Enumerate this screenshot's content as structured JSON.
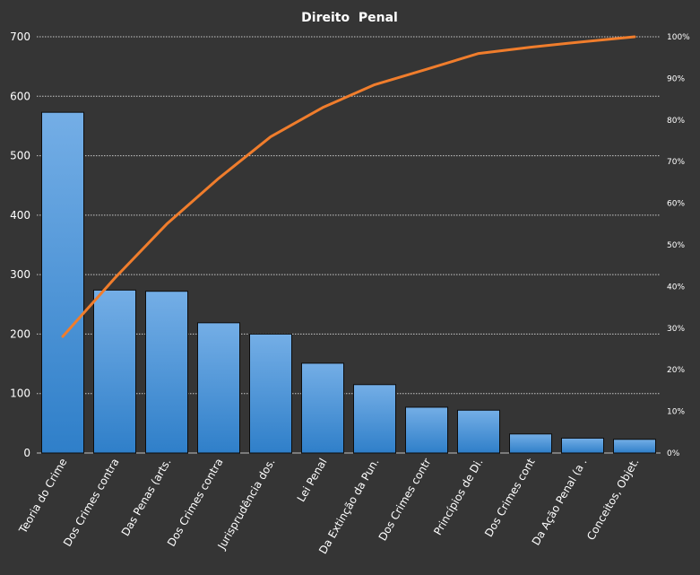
{
  "chart_data": {
    "type": "bar",
    "title": "Direito  Penal",
    "categories": [
      "Teoria do Crime",
      "Dos Crimes contra",
      "Das Penas (arts.",
      "Dos Crimes contra",
      "Jurisprudência dos.",
      "Lei Penal",
      "Da Extinção da Pun.",
      "Dos Crimes contr",
      "Princípios de Di.",
      "Dos Crimes cont",
      "Da Ação Penal (a .",
      "Conceitos, Objet."
    ],
    "series": [
      {
        "values": [
          573,
          274,
          272,
          219,
          200,
          151,
          115,
          77,
          72,
          32,
          25,
          23
        ]
      },
      {
        "values": [
          28,
          42,
          55,
          66,
          76,
          83,
          88.5,
          92.2,
          96,
          97.5,
          98.8,
          100
        ]
      }
    ],
    "ylim": [
      0,
      700
    ],
    "yticks": [
      "0",
      "100",
      "200",
      "300",
      "400",
      "500",
      "600",
      "700"
    ],
    "y2lim": [
      0,
      100
    ],
    "y2ticks": [
      "0%",
      "10%",
      "20%",
      "30%",
      "40%",
      "50%",
      "60%",
      "70%",
      "80%",
      "90%",
      "100%"
    ],
    "grid": true,
    "colors": {
      "background": "#353535",
      "grid": "#c8c8c8",
      "bar_top": "#74aee6",
      "bar_bottom": "#2f7fc9",
      "bar_stroke": "#0d0d0d",
      "line": "#f07d2c"
    }
  }
}
